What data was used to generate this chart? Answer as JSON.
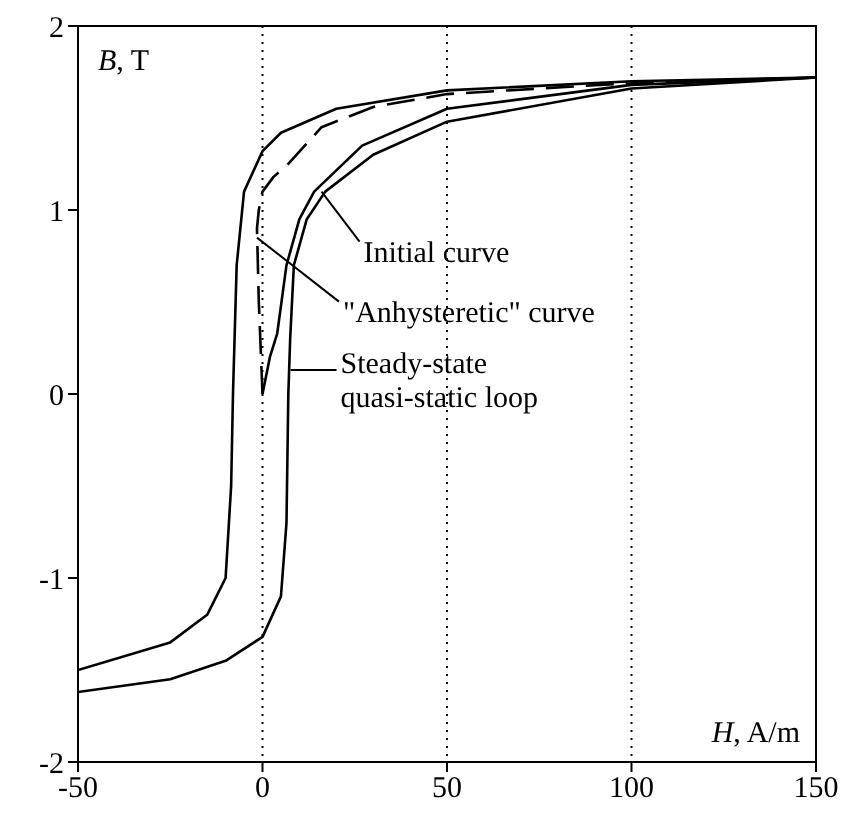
{
  "chart_data": {
    "type": "line",
    "xlabel": "H, A/m",
    "ylabel": "B, T",
    "xlim": [
      -50,
      150
    ],
    "xticks": [
      -50,
      0,
      50,
      100,
      150
    ],
    "ylim": [
      -2,
      2
    ],
    "yticks": [
      -2,
      -1,
      0,
      1,
      2
    ],
    "grid": "x",
    "legend": false,
    "marker": "none",
    "series": [
      {
        "color": "#000000",
        "x": [
          150,
          100,
          50,
          20,
          5,
          0,
          -5,
          -7,
          -8,
          -8.5,
          -10,
          -15,
          -25,
          -50
        ],
        "values": [
          1.72,
          1.7,
          1.65,
          1.55,
          1.42,
          1.32,
          1.1,
          0.7,
          0,
          -0.5,
          -1,
          -1.2,
          -1.35,
          -1.5
        ]
      },
      {
        "color": "#000000",
        "x": [
          -50,
          -25,
          -10,
          0,
          5,
          6.5,
          7,
          7.5,
          8.5,
          12,
          17,
          30,
          50,
          100,
          150
        ],
        "values": [
          -1.62,
          -1.55,
          -1.45,
          -1.32,
          -1.1,
          -0.7,
          0,
          0.3,
          0.7,
          0.95,
          1.1,
          1.3,
          1.48,
          1.66,
          1.72
        ]
      },
      {
        "color": "#000000",
        "x": [
          0,
          2,
          4,
          6.5,
          10,
          14,
          27,
          50,
          100,
          150
        ],
        "values": [
          0,
          0.2,
          0.33,
          0.7,
          0.95,
          1.1,
          1.35,
          1.55,
          1.68,
          1.72
        ]
      },
      {
        "color": "#000000",
        "line_style": "dashed",
        "x": [
          0,
          -1,
          -1.5,
          -1,
          0,
          3,
          6.5,
          16,
          30,
          50,
          100,
          150
        ],
        "values": [
          0,
          0.5,
          0.9,
          1.0,
          1.1,
          1.18,
          1.24,
          1.45,
          1.56,
          1.63,
          1.69,
          1.72
        ]
      }
    ],
    "annotations": [
      {
        "text": "Initial curve",
        "x": 16,
        "y": 1.1
      },
      {
        "text": "\"Anhysteretic\" curve",
        "x": -1.5,
        "y": 0.85
      },
      {
        "text": "Steady-state\nquasi-static loop",
        "x": 7.6,
        "y": 0.13
      }
    ]
  }
}
